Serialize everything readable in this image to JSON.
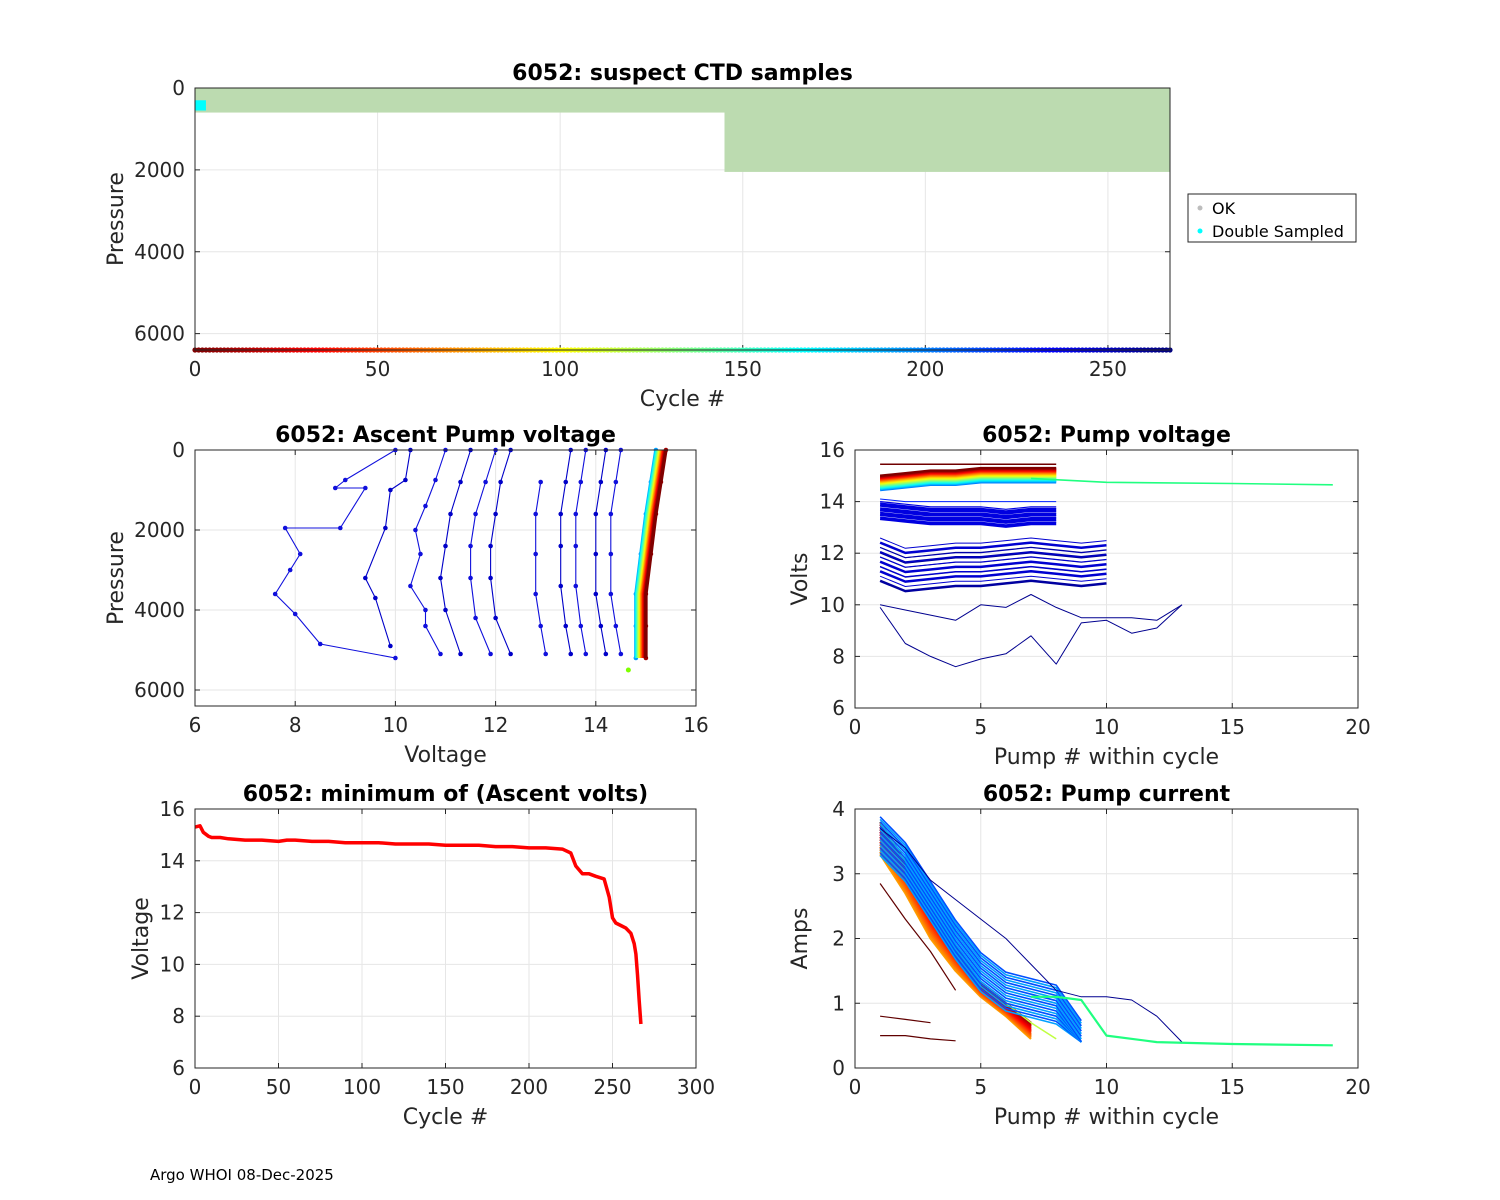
{
  "footer": "Argo WHOI 08-Dec-2025",
  "colors": {
    "ok": "#bcdbb0",
    "double": "#00ffff",
    "min_volts": "#ff0000"
  },
  "chart_data": [
    {
      "id": "suspect",
      "type": "scatter",
      "title": "6052: suspect CTD samples",
      "xlabel": "Cycle #",
      "ylabel": "Pressure",
      "xlim": [
        0,
        267
      ],
      "ylim": [
        6400,
        0
      ],
      "xticks": [
        0,
        50,
        100,
        150,
        200,
        250
      ],
      "yticks": [
        0,
        2000,
        4000,
        6000
      ],
      "legend": {
        "position": "outside-right",
        "entries": [
          "OK",
          "Double Sampled"
        ]
      },
      "ok_blocks": [
        {
          "x_range": [
            0,
            145
          ],
          "p_range": [
            0,
            600
          ]
        },
        {
          "x_range": [
            145,
            267
          ],
          "p_range": [
            0,
            2050
          ]
        }
      ],
      "double_sampled": {
        "x_range": [
          0,
          3
        ],
        "p_range": [
          300,
          550
        ]
      },
      "cycle_strip_pressure": 6400
    },
    {
      "id": "ascent",
      "type": "line",
      "title": "6052: Ascent Pump voltage",
      "xlabel": "Voltage",
      "ylabel": "Pressure",
      "xlim": [
        6,
        16
      ],
      "ylim": [
        6400,
        0
      ],
      "xticks": [
        6,
        8,
        10,
        12,
        14,
        16
      ],
      "yticks": [
        0,
        2000,
        4000,
        6000
      ],
      "series": [
        {
          "name": "late-cycle-1",
          "points": [
            [
              10.0,
              0
            ],
            [
              9.0,
              750
            ],
            [
              8.8,
              950
            ],
            [
              9.4,
              950
            ],
            [
              8.9,
              1950
            ],
            [
              7.8,
              1950
            ],
            [
              8.1,
              2600
            ],
            [
              7.9,
              3000
            ],
            [
              7.6,
              3600
            ],
            [
              8.0,
              4100
            ],
            [
              8.5,
              4850
            ],
            [
              10.0,
              5200
            ]
          ]
        },
        {
          "name": "late-cycle-2",
          "points": [
            [
              10.3,
              0
            ],
            [
              10.2,
              750
            ],
            [
              9.9,
              1000
            ],
            [
              9.8,
              1950
            ],
            [
              9.4,
              3200
            ],
            [
              9.6,
              3700
            ],
            [
              9.9,
              4900
            ]
          ]
        },
        {
          "name": "late-cycle-3",
          "points": [
            [
              11.0,
              0
            ],
            [
              10.8,
              750
            ],
            [
              10.6,
              1400
            ],
            [
              10.4,
              2000
            ],
            [
              10.5,
              2600
            ],
            [
              10.3,
              3400
            ],
            [
              10.6,
              4000
            ],
            [
              10.6,
              4400
            ],
            [
              10.9,
              5100
            ]
          ]
        },
        {
          "name": "late-cycle-4",
          "points": [
            [
              11.5,
              0
            ],
            [
              11.3,
              800
            ],
            [
              11.1,
              1600
            ],
            [
              11.0,
              2400
            ],
            [
              10.9,
              3200
            ],
            [
              11.0,
              4000
            ],
            [
              11.3,
              5100
            ]
          ]
        },
        {
          "name": "late-cycle-5",
          "points": [
            [
              12.0,
              0
            ],
            [
              11.8,
              800
            ],
            [
              11.6,
              1600
            ],
            [
              11.5,
              2400
            ],
            [
              11.5,
              3200
            ],
            [
              11.6,
              4200
            ],
            [
              11.9,
              5100
            ]
          ]
        },
        {
          "name": "late-cycle-6",
          "points": [
            [
              12.3,
              0
            ],
            [
              12.1,
              800
            ],
            [
              12.0,
              1600
            ],
            [
              11.9,
              2400
            ],
            [
              11.9,
              3200
            ],
            [
              12.0,
              4200
            ],
            [
              12.3,
              5100
            ]
          ]
        },
        {
          "name": "late-cycle-7",
          "points": [
            [
              12.9,
              800
            ],
            [
              12.8,
              1600
            ],
            [
              12.8,
              2600
            ],
            [
              12.8,
              3600
            ],
            [
              12.9,
              4400
            ],
            [
              13.0,
              5100
            ]
          ]
        },
        {
          "name": "late-cycle-8",
          "points": [
            [
              13.5,
              0
            ],
            [
              13.4,
              800
            ],
            [
              13.3,
              1600
            ],
            [
              13.3,
              2400
            ],
            [
              13.3,
              3400
            ],
            [
              13.4,
              4400
            ],
            [
              13.5,
              5100
            ]
          ]
        },
        {
          "name": "late-cycle-9",
          "points": [
            [
              13.8,
              0
            ],
            [
              13.7,
              800
            ],
            [
              13.6,
              1600
            ],
            [
              13.6,
              2400
            ],
            [
              13.6,
              3400
            ],
            [
              13.7,
              4400
            ],
            [
              13.8,
              5100
            ]
          ]
        },
        {
          "name": "late-cycle-10",
          "points": [
            [
              14.2,
              0
            ],
            [
              14.1,
              800
            ],
            [
              14.0,
              1600
            ],
            [
              14.0,
              2600
            ],
            [
              14.0,
              3600
            ],
            [
              14.1,
              4400
            ],
            [
              14.2,
              5100
            ]
          ]
        },
        {
          "name": "late-cycle-11",
          "points": [
            [
              14.5,
              0
            ],
            [
              14.4,
              800
            ],
            [
              14.3,
              1600
            ],
            [
              14.3,
              2600
            ],
            [
              14.3,
              3600
            ],
            [
              14.4,
              4400
            ],
            [
              14.5,
              5100
            ]
          ]
        },
        {
          "name": "early-cycles-envelope",
          "points": [
            [
              15.2,
              0
            ],
            [
              15.1,
              800
            ],
            [
              15.0,
              1600
            ],
            [
              14.9,
              2600
            ],
            [
              14.8,
              3600
            ],
            [
              14.8,
              4400
            ],
            [
              14.8,
              5200
            ]
          ]
        },
        {
          "name": "first-cycles",
          "points": [
            [
              15.4,
              0
            ],
            [
              15.3,
              800
            ],
            [
              15.2,
              1600
            ],
            [
              15.1,
              2600
            ],
            [
              15.0,
              3600
            ],
            [
              15.0,
              4400
            ],
            [
              15.0,
              5200
            ]
          ]
        }
      ]
    },
    {
      "id": "pump_voltage",
      "type": "line",
      "title": "6052: Pump voltage",
      "xlabel": "Pump # within cycle",
      "ylabel": "Volts",
      "xlim": [
        0,
        20
      ],
      "ylim": [
        6,
        16
      ],
      "xticks": [
        0,
        5,
        10,
        15,
        20
      ],
      "yticks": [
        6,
        8,
        10,
        12,
        14,
        16
      ],
      "series": [
        {
          "name": "last-cycle",
          "x": [
            1,
            2,
            3,
            4,
            5,
            6,
            7,
            8,
            9,
            10,
            11,
            12,
            13
          ],
          "values": [
            10.0,
            9.8,
            9.6,
            9.4,
            10.0,
            9.9,
            10.4,
            9.9,
            9.5,
            9.5,
            9.5,
            9.4,
            10.0
          ]
        },
        {
          "name": "late-low",
          "x": [
            1,
            2,
            3,
            4,
            5,
            6,
            7,
            8,
            9,
            10,
            11,
            12,
            13
          ],
          "values": [
            9.9,
            8.5,
            8.0,
            7.6,
            7.9,
            8.1,
            8.8,
            7.7,
            9.3,
            9.4,
            8.9,
            9.1,
            10.0
          ]
        },
        {
          "name": "late-mid",
          "x": [
            1,
            2,
            3,
            4,
            5,
            6,
            7,
            8,
            9,
            10
          ],
          "values": [
            11.8,
            11.4,
            11.5,
            11.6,
            11.6,
            11.7,
            11.8,
            11.7,
            11.6,
            11.7
          ]
        },
        {
          "name": "mid",
          "x": [
            1,
            2,
            3,
            4,
            5,
            6,
            7,
            8
          ],
          "values": [
            13.7,
            13.6,
            13.5,
            13.5,
            13.5,
            13.4,
            13.5,
            13.5
          ]
        },
        {
          "name": "early",
          "x": [
            1,
            2,
            3,
            4,
            5,
            6,
            7,
            8
          ],
          "values": [
            14.9,
            15.0,
            15.1,
            15.1,
            15.2,
            15.2,
            15.2,
            15.2
          ]
        },
        {
          "name": "long-cycle",
          "x": [
            7,
            10,
            15,
            19
          ],
          "values": [
            14.9,
            14.75,
            14.7,
            14.65
          ]
        }
      ]
    },
    {
      "id": "min_volts",
      "type": "line",
      "title": "6052: minimum of (Ascent volts)",
      "xlabel": "Cycle #",
      "ylabel": "Voltage",
      "xlim": [
        0,
        300
      ],
      "ylim": [
        6,
        16
      ],
      "xticks": [
        0,
        50,
        100,
        150,
        200,
        250,
        300
      ],
      "yticks": [
        6,
        8,
        10,
        12,
        14,
        16
      ],
      "x": [
        0,
        3,
        5,
        8,
        10,
        15,
        20,
        30,
        40,
        50,
        55,
        60,
        70,
        80,
        90,
        100,
        110,
        120,
        130,
        140,
        150,
        160,
        170,
        180,
        190,
        200,
        210,
        220,
        225,
        228,
        232,
        236,
        240,
        245,
        248,
        250,
        252,
        255,
        258,
        261,
        263,
        264,
        265,
        266,
        267
      ],
      "values": [
        15.3,
        15.35,
        15.1,
        14.95,
        14.9,
        14.9,
        14.85,
        14.8,
        14.8,
        14.75,
        14.8,
        14.8,
        14.75,
        14.75,
        14.7,
        14.7,
        14.7,
        14.65,
        14.65,
        14.65,
        14.6,
        14.6,
        14.6,
        14.55,
        14.55,
        14.5,
        14.5,
        14.45,
        14.3,
        13.8,
        13.5,
        13.5,
        13.4,
        13.3,
        12.6,
        11.8,
        11.6,
        11.5,
        11.4,
        11.2,
        10.8,
        10.4,
        9.6,
        8.6,
        7.7
      ]
    },
    {
      "id": "pump_current",
      "type": "line",
      "title": "6052: Pump current",
      "xlabel": "Pump # within cycle",
      "ylabel": "Amps",
      "xlim": [
        0,
        20
      ],
      "ylim": [
        0,
        4
      ],
      "xticks": [
        0,
        5,
        10,
        15,
        20
      ],
      "yticks": [
        0,
        1,
        2,
        3,
        4
      ],
      "series": [
        {
          "name": "early-high",
          "x": [
            1,
            2,
            3,
            4,
            5,
            6,
            7,
            8
          ],
          "values": [
            3.8,
            3.2,
            2.5,
            1.9,
            1.3,
            1.0,
            0.7,
            0.45
          ]
        },
        {
          "name": "early",
          "x": [
            1,
            2,
            3,
            4,
            5,
            6,
            7
          ],
          "values": [
            3.3,
            2.7,
            2.0,
            1.5,
            1.1,
            0.8,
            0.45
          ]
        },
        {
          "name": "mid",
          "x": [
            1,
            2,
            3,
            4,
            5,
            6,
            7,
            8,
            9
          ],
          "values": [
            3.6,
            3.2,
            2.6,
            2.0,
            1.5,
            1.2,
            1.1,
            1.0,
            0.45
          ]
        },
        {
          "name": "late",
          "x": [
            1,
            2,
            3,
            4,
            5,
            6,
            7,
            8,
            9,
            10,
            11,
            12,
            13
          ],
          "values": [
            3.7,
            3.4,
            2.9,
            2.6,
            2.3,
            2.0,
            1.6,
            1.2,
            1.1,
            1.1,
            1.05,
            0.8,
            0.4
          ]
        },
        {
          "name": "long-cycle",
          "x": [
            7,
            8,
            9,
            10,
            12,
            15,
            19
          ],
          "values": [
            1.1,
            1.1,
            1.05,
            0.5,
            0.4,
            0.37,
            0.35
          ]
        },
        {
          "name": "first-low",
          "x": [
            1,
            2,
            3,
            4
          ],
          "values": [
            2.85,
            2.3,
            1.8,
            1.2
          ]
        },
        {
          "name": "first-a",
          "x": [
            1,
            2,
            3
          ],
          "values": [
            0.8,
            0.75,
            0.7
          ]
        },
        {
          "name": "first-b",
          "x": [
            1,
            2,
            3,
            4
          ],
          "values": [
            0.5,
            0.5,
            0.45,
            0.42
          ]
        }
      ]
    }
  ]
}
